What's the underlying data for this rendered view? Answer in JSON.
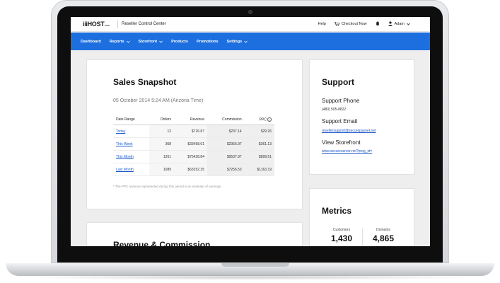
{
  "header": {
    "logo": "iiiHOST",
    "logo_suffix": ".com",
    "app_title": "Reseller Control Center",
    "help": "Help",
    "checkout": "Checkout Now",
    "user": "Adam"
  },
  "nav": {
    "items": [
      {
        "label": "Dashboard",
        "dropdown": false
      },
      {
        "label": "Reports",
        "dropdown": true
      },
      {
        "label": "Storefront",
        "dropdown": true
      },
      {
        "label": "Products",
        "dropdown": false
      },
      {
        "label": "Promotions",
        "dropdown": false
      },
      {
        "label": "Settings",
        "dropdown": true
      }
    ]
  },
  "sales": {
    "title": "Sales Snapshot",
    "date": "05 October 2014 5:24 AM (Arizona Time)",
    "columns": [
      "Date Range",
      "Orders",
      "Revenue",
      "Commission",
      "PPC"
    ],
    "rows": [
      {
        "range": "Today",
        "orders": "12",
        "revenue": "$726.87",
        "commission": "$237.14",
        "ppc": "$29.26"
      },
      {
        "range": "This Week",
        "orders": "368",
        "revenue": "$33458.01",
        "commission": "$2365.97",
        "ppc": "$361.13"
      },
      {
        "range": "This Month",
        "orders": "1261",
        "revenue": "$75428.84",
        "commission": "$9537.97",
        "ppc": "$899.51"
      },
      {
        "range": "Last Month",
        "orders": "1089",
        "revenue": "$63252.25",
        "commission": "$7256.53",
        "ppc": "$1163.19"
      }
    ],
    "note": "* The PPC revenue represented during this period is an estimate of earnings."
  },
  "revenue": {
    "title": "Revenue & Commission"
  },
  "support": {
    "title": "Support",
    "phone_label": "Support Phone",
    "phone": "(480) 505-8822",
    "email_label": "Support Email",
    "email": "resellersupport@securepaynet.net",
    "storefront_label": "View Storefront",
    "storefront": "www.secureserver.net?prog_id="
  },
  "metrics": {
    "title": "Metrics",
    "customers_label": "Customers",
    "customers": "1,430",
    "domains_label": "Domains",
    "domains": "4,865"
  },
  "colors": {
    "nav": "#1d6fe0",
    "link": "#1d57c9"
  }
}
